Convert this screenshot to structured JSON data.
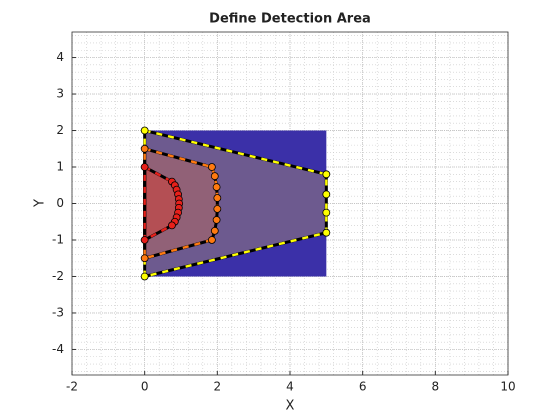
{
  "chart_data": {
    "type": "polygon",
    "title": "Define Detection Area",
    "x_label": "X",
    "y_label": "Y",
    "xlim": [
      -2,
      10
    ],
    "xticks": [
      -2,
      0,
      2,
      4,
      6,
      8,
      10
    ],
    "ylim": [
      -4.7,
      4.7
    ],
    "yticks": [
      -4,
      -3,
      -2,
      -1,
      0,
      1,
      2,
      3,
      4
    ],
    "grid": true,
    "minor_grid": true,
    "series": [
      {
        "fill": "#3b30a8",
        "fill_opacity": 1,
        "x": [
          0,
          5,
          5,
          0
        ],
        "y": [
          2,
          2,
          -2,
          -2
        ]
      },
      {
        "fill": "#b89a6a",
        "fill_opacity": 0.4,
        "color": "#ffff00",
        "x": [
          0,
          5,
          5,
          5,
          5,
          0
        ],
        "y": [
          2,
          0.8,
          0.25,
          -0.25,
          -0.8,
          -2
        ]
      },
      {
        "fill": "#d4704a",
        "fill_opacity": 0.35,
        "color": "#ff7a10",
        "x": [
          0,
          1.85,
          1.93,
          1.98,
          2.0,
          2.0,
          1.98,
          1.93,
          1.85,
          0
        ],
        "y": [
          1.5,
          1.0,
          0.75,
          0.45,
          0.15,
          -0.15,
          -0.45,
          -0.75,
          -1.0,
          -1.5
        ]
      },
      {
        "fill": "#e03a2a",
        "fill_opacity": 0.45,
        "color": "#e8201a",
        "x": [
          0,
          0.75,
          0.83,
          0.88,
          0.92,
          0.94,
          0.95,
          0.94,
          0.92,
          0.88,
          0.83,
          0.75,
          0
        ],
        "y": [
          1,
          0.6,
          0.5,
          0.38,
          0.25,
          0.12,
          0,
          -0.12,
          -0.25,
          -0.38,
          -0.5,
          -0.6,
          -1
        ]
      }
    ]
  }
}
